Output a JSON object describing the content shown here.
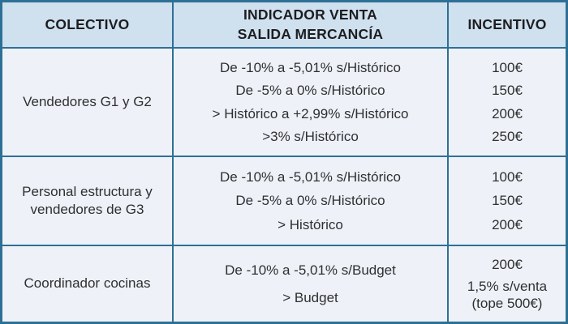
{
  "header": {
    "colectivo": "COLECTIVO",
    "indicador": "INDICADOR VENTA\nSALIDA MERCANCÍA",
    "incentivo": "INCENTIVO"
  },
  "rows": [
    {
      "colectivo": "Vendedores G1 y G2",
      "conditions": [
        "De -10% a -5,01% s/Histórico",
        "De -5% a 0% s/Histórico",
        "> Histórico a +2,99% s/Histórico",
        ">3% s/Histórico"
      ],
      "incentives": [
        "100€",
        "150€",
        "200€",
        "250€"
      ]
    },
    {
      "colectivo": "Personal estructura y vendedores de G3",
      "conditions": [
        "De -10% a -5,01% s/Histórico",
        "De -5% a 0% s/Histórico",
        "> Histórico"
      ],
      "incentives": [
        "100€",
        "150€",
        "200€"
      ]
    },
    {
      "colectivo": "Coordinador cocinas",
      "conditions": [
        "De -10% a -5,01% s/Budget",
        "> Budget"
      ],
      "incentives": [
        "200€",
        "1,5% s/venta\n(tope 500€)"
      ]
    }
  ],
  "colors": {
    "border": "#2e7095",
    "header_bg": "#cfe0ef",
    "body_bg": "#eef2f8",
    "text": "#2f2f31"
  }
}
